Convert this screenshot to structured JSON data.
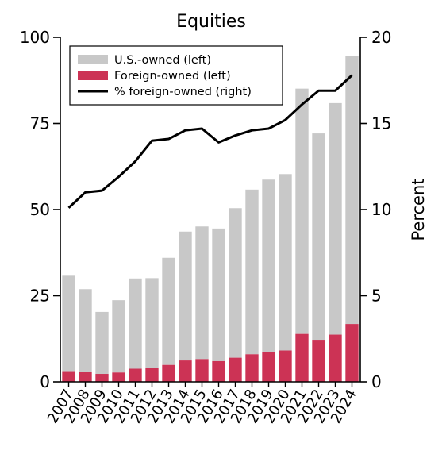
{
  "chart_data": {
    "type": "bar",
    "title": "Equities",
    "xlabel": "",
    "ylabel": "",
    "y2label": "Percent",
    "categories": [
      "2007",
      "2008",
      "2009",
      "2010",
      "2011",
      "2012",
      "2013",
      "2014",
      "2015",
      "2016",
      "2017",
      "2018",
      "2019",
      "2020",
      "2021",
      "2022",
      "2023",
      "2024"
    ],
    "ylim": [
      0,
      100
    ],
    "y2lim": [
      0,
      20
    ],
    "yticks": [
      "0",
      "25",
      "50",
      "75",
      "100"
    ],
    "y2ticks": [
      "0",
      "5",
      "10",
      "15",
      "20"
    ],
    "stacked": true,
    "series": [
      {
        "name": "U.S.-owned (left)",
        "kind": "bar",
        "axis": "left",
        "color": "#c8c8c8",
        "values": [
          27.7,
          24.0,
          18.0,
          21.0,
          26.2,
          26.0,
          31.1,
          37.4,
          38.5,
          38.5,
          43.4,
          47.8,
          50.1,
          51.2,
          71.2,
          59.9,
          67.2,
          77.9
        ]
      },
      {
        "name": "Foreign-owned (left)",
        "kind": "bar",
        "axis": "left",
        "color": "#cc3355",
        "values": [
          3.1,
          2.9,
          2.3,
          2.7,
          3.8,
          4.1,
          4.9,
          6.2,
          6.6,
          6.0,
          7.0,
          8.0,
          8.6,
          9.1,
          13.9,
          12.2,
          13.7,
          16.8
        ]
      },
      {
        "name": "% foreign-owned (right)",
        "kind": "line",
        "axis": "right",
        "color": "#000000",
        "values": [
          10.1,
          11.0,
          11.1,
          11.9,
          12.8,
          14.0,
          14.1,
          14.6,
          14.7,
          13.9,
          14.3,
          14.6,
          14.7,
          15.2,
          16.1,
          16.9,
          16.9,
          17.8
        ]
      }
    ],
    "grid": false,
    "legend_position": "top-left"
  }
}
